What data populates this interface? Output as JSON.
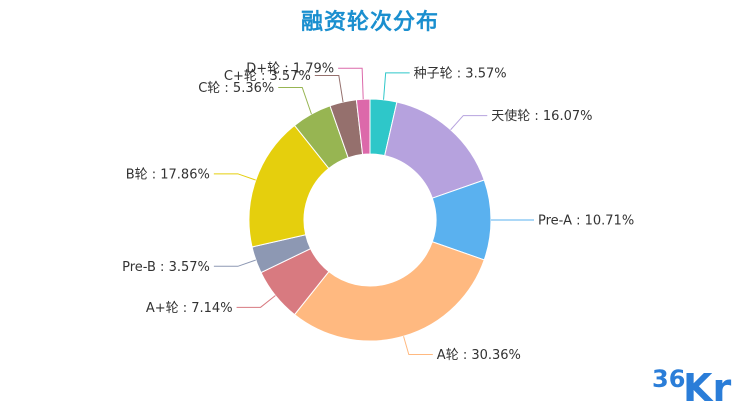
{
  "chart_data": {
    "type": "pie",
    "title": "融资轮次分布",
    "donut": true,
    "legend": "none",
    "slices": [
      {
        "label": "种子轮",
        "percent": 3.57,
        "color": "#2ec7c9",
        "text": "种子轮 : 3.57%"
      },
      {
        "label": "天使轮",
        "percent": 16.07,
        "color": "#b6a2de",
        "text": "天使轮 : 16.07%"
      },
      {
        "label": "Pre-A",
        "percent": 10.71,
        "color": "#5ab1ef",
        "text": "Pre-A : 10.71%"
      },
      {
        "label": "A轮",
        "percent": 30.36,
        "color": "#ffb980",
        "text": "A轮 : 30.36%"
      },
      {
        "label": "A+轮",
        "percent": 7.14,
        "color": "#d87a80",
        "text": "A+轮 : 7.14%"
      },
      {
        "label": "Pre-B",
        "percent": 3.57,
        "color": "#8d98b3",
        "text": "Pre-B : 3.57%"
      },
      {
        "label": "B轮",
        "percent": 17.86,
        "color": "#e5cf0d",
        "text": "B轮 : 17.86%"
      },
      {
        "label": "C轮",
        "percent": 5.36,
        "color": "#97b552",
        "text": "C轮 : 5.36%"
      },
      {
        "label": "C+轮",
        "percent": 3.57,
        "color": "#95706d",
        "text": "C+轮 : 3.57%"
      },
      {
        "label": "D+轮",
        "percent": 1.79,
        "color": "#dc69aa",
        "text": "D+轮 : 1.79%"
      }
    ]
  },
  "logo": {
    "text_digits": "36",
    "text_letters": "Kr",
    "color": "#2a7dd8"
  }
}
